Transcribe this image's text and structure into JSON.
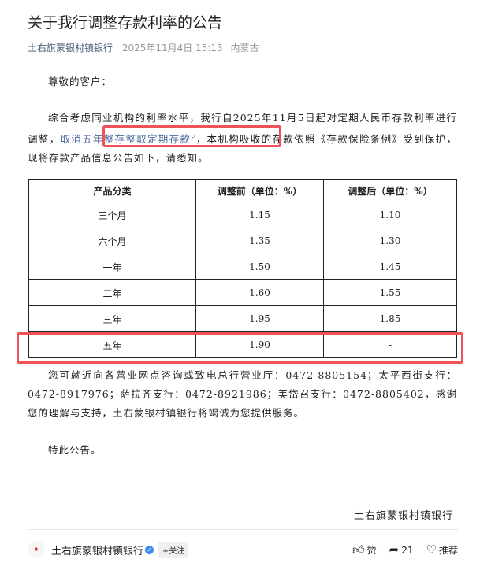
{
  "article": {
    "title": "关于我行调整存款利率的公告",
    "source": "土右旗蒙银村镇银行",
    "date": "2025年11月4日 15:13",
    "location": "内蒙古"
  },
  "body": {
    "greeting": "尊敬的客户：",
    "para1_a": "综合考虑同业机构的利率水平，我行自2025年11月5日起对定期人民币存款利率进行调整，",
    "para1_link": "取消五年整存整取定期存款",
    "para1_b": "，本机构吸收的存款依照《存款保险条例》受到保护，现将存款产品信息公告如下，请悉知。",
    "para2": "您可就近向各营业网点咨询或致电总行营业厅：0472-8805154；太平西街支行：0472-8917976；萨拉齐支行：0472-8921986；美岱召支行：0472-8805402，感谢您的理解与支持，土右蒙银村镇银行将竭诚为您提供服务。",
    "closing": "特此公告。",
    "signature": "土右旗蒙银村镇银行"
  },
  "table": {
    "headers": [
      "产品分类",
      "调整前（单位：%）",
      "调整后（单位：%）"
    ],
    "rows": [
      [
        "三个月",
        "1.15",
        "1.10"
      ],
      [
        "六个月",
        "1.35",
        "1.30"
      ],
      [
        "一年",
        "1.50",
        "1.45"
      ],
      [
        "二年",
        "1.60",
        "1.55"
      ],
      [
        "三年",
        "1.95",
        "1.85"
      ],
      [
        "五年",
        "1.90",
        "-"
      ]
    ]
  },
  "footer": {
    "account": "土右旗蒙银村镇银行",
    "follow": "+关注",
    "like": "赞",
    "share_count": "21",
    "recommend": "推荐"
  },
  "colors": {
    "highlight": "#f0525a",
    "link": "#4a6aa0"
  }
}
